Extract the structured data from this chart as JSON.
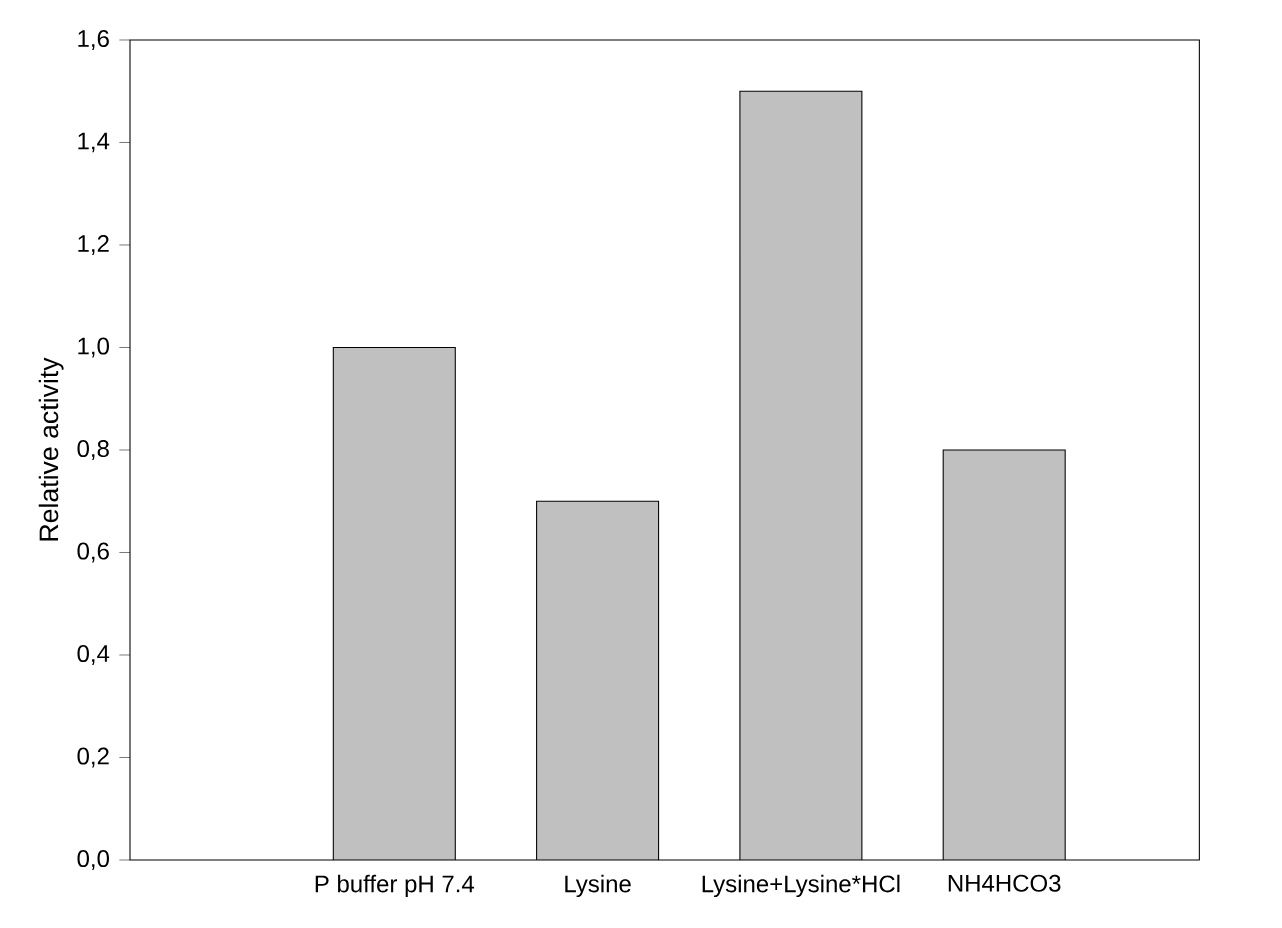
{
  "chart_data": {
    "type": "bar",
    "ylabel": "Relative activity",
    "categories": [
      "P buffer pH 7.4",
      "Lysine",
      "Lysine+Lysine*HCl",
      "NH4HCO3"
    ],
    "values": [
      1.0,
      0.7,
      1.5,
      0.8
    ],
    "color": "#c0c0c0",
    "ylim": [
      0,
      1.6
    ],
    "yticks": [
      {
        "value": 0,
        "label": "0,0"
      },
      {
        "value": 0.2,
        "label": "0,2"
      },
      {
        "value": 0.4,
        "label": "0,4"
      },
      {
        "value": 0.6,
        "label": "0,6"
      },
      {
        "value": 0.8,
        "label": "0,8"
      },
      {
        "value": 1.0,
        "label": "1,0"
      },
      {
        "value": 1.2,
        "label": "1,2"
      },
      {
        "value": 1.4,
        "label": "1,4"
      },
      {
        "value": 1.6,
        "label": "1,6"
      }
    ],
    "grid": false
  }
}
